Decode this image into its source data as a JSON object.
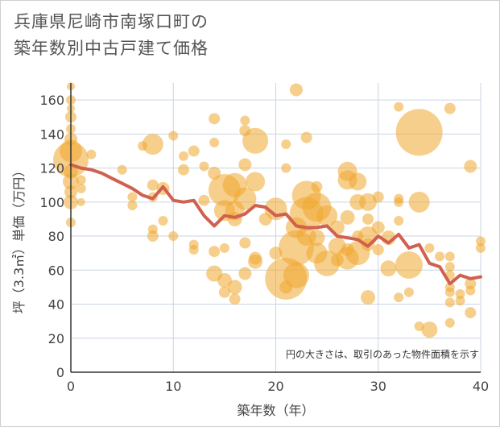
{
  "title_line1": "兵庫県尼崎市南塚口町の",
  "title_line2": "築年数別中古戸建て価格",
  "colors": {
    "bubble": "#f0a830",
    "line": "#d06050",
    "grid": "#c9d6e2",
    "axis": "#333333"
  },
  "chart_data": {
    "type": "scatter",
    "xlabel": "築年数（年）",
    "ylabel": "坪（3.3㎡）単価（万円）",
    "xlim": [
      0,
      40
    ],
    "ylim": [
      0,
      170
    ],
    "xticks": [
      0,
      10,
      20,
      30,
      40
    ],
    "yticks": [
      0,
      20,
      40,
      60,
      80,
      100,
      120,
      140,
      160
    ],
    "grid": true,
    "note": "円の大きさは、取引のあった物件面積を示す",
    "trend": {
      "x": [
        0,
        1,
        2,
        3,
        4,
        5,
        6,
        7,
        8,
        9,
        10,
        11,
        12,
        13,
        14,
        15,
        16,
        17,
        18,
        19,
        20,
        21,
        22,
        23,
        24,
        25,
        26,
        27,
        28,
        29,
        30,
        31,
        32,
        33,
        34,
        35,
        36,
        37,
        38,
        39,
        40
      ],
      "y": [
        122,
        120,
        119,
        117,
        114,
        111,
        108,
        104,
        102,
        109,
        101,
        100,
        101,
        92,
        86,
        92,
        91,
        93,
        98,
        97,
        92,
        93,
        86,
        85,
        85,
        86,
        80,
        79,
        78,
        74,
        80,
        76,
        81,
        73,
        75,
        64,
        62,
        52,
        57,
        55,
        56
      ]
    },
    "bubbles": [
      {
        "x": 0,
        "y": 168,
        "s": 5
      },
      {
        "x": 0,
        "y": 160,
        "s": 6
      },
      {
        "x": 0,
        "y": 155,
        "s": 5
      },
      {
        "x": 0,
        "y": 150,
        "s": 7
      },
      {
        "x": 0,
        "y": 143,
        "s": 6
      },
      {
        "x": 0,
        "y": 137,
        "s": 8
      },
      {
        "x": 0,
        "y": 130,
        "s": 14
      },
      {
        "x": 0,
        "y": 125,
        "s": 22
      },
      {
        "x": 0,
        "y": 118,
        "s": 9
      },
      {
        "x": 0,
        "y": 112,
        "s": 10
      },
      {
        "x": 0,
        "y": 106,
        "s": 8
      },
      {
        "x": 0,
        "y": 100,
        "s": 9
      },
      {
        "x": 0,
        "y": 88,
        "s": 6
      },
      {
        "x": 1,
        "y": 113,
        "s": 6
      },
      {
        "x": 1,
        "y": 108,
        "s": 6
      },
      {
        "x": 1,
        "y": 100,
        "s": 5
      },
      {
        "x": 2,
        "y": 128,
        "s": 6
      },
      {
        "x": 5,
        "y": 119,
        "s": 6
      },
      {
        "x": 6,
        "y": 103,
        "s": 6
      },
      {
        "x": 6,
        "y": 98,
        "s": 6
      },
      {
        "x": 7,
        "y": 133,
        "s": 6
      },
      {
        "x": 8,
        "y": 134,
        "s": 13
      },
      {
        "x": 8,
        "y": 110,
        "s": 7
      },
      {
        "x": 8,
        "y": 103,
        "s": 6
      },
      {
        "x": 8,
        "y": 84,
        "s": 6
      },
      {
        "x": 8,
        "y": 80,
        "s": 7
      },
      {
        "x": 9,
        "y": 89,
        "s": 6
      },
      {
        "x": 9,
        "y": 108,
        "s": 8
      },
      {
        "x": 10,
        "y": 139,
        "s": 6
      },
      {
        "x": 10,
        "y": 80,
        "s": 6
      },
      {
        "x": 11,
        "y": 127,
        "s": 6
      },
      {
        "x": 11,
        "y": 119,
        "s": 7
      },
      {
        "x": 12,
        "y": 130,
        "s": 7
      },
      {
        "x": 12,
        "y": 75,
        "s": 6
      },
      {
        "x": 12,
        "y": 72,
        "s": 6
      },
      {
        "x": 13,
        "y": 101,
        "s": 7
      },
      {
        "x": 13,
        "y": 121,
        "s": 6
      },
      {
        "x": 14,
        "y": 149,
        "s": 7
      },
      {
        "x": 14,
        "y": 135,
        "s": 6
      },
      {
        "x": 14,
        "y": 117,
        "s": 8
      },
      {
        "x": 14,
        "y": 71,
        "s": 7
      },
      {
        "x": 14,
        "y": 58,
        "s": 10
      },
      {
        "x": 15,
        "y": 107,
        "s": 20
      },
      {
        "x": 15,
        "y": 95,
        "s": 13
      },
      {
        "x": 15,
        "y": 73,
        "s": 6
      },
      {
        "x": 15,
        "y": 54,
        "s": 9
      },
      {
        "x": 15,
        "y": 47,
        "s": 7
      },
      {
        "x": 16,
        "y": 110,
        "s": 15
      },
      {
        "x": 16,
        "y": 95,
        "s": 12
      },
      {
        "x": 16,
        "y": 90,
        "s": 9
      },
      {
        "x": 16,
        "y": 50,
        "s": 9
      },
      {
        "x": 16,
        "y": 43,
        "s": 7
      },
      {
        "x": 17,
        "y": 148,
        "s": 6
      },
      {
        "x": 17,
        "y": 142,
        "s": 7
      },
      {
        "x": 17,
        "y": 122,
        "s": 8
      },
      {
        "x": 17,
        "y": 102,
        "s": 14
      },
      {
        "x": 17,
        "y": 76,
        "s": 7
      },
      {
        "x": 17,
        "y": 58,
        "s": 8
      },
      {
        "x": 18,
        "y": 136,
        "s": 16
      },
      {
        "x": 18,
        "y": 112,
        "s": 12
      },
      {
        "x": 18,
        "y": 67,
        "s": 8
      },
      {
        "x": 18,
        "y": 65,
        "s": 9
      },
      {
        "x": 19,
        "y": 90,
        "s": 8
      },
      {
        "x": 20,
        "y": 96,
        "s": 14
      },
      {
        "x": 20,
        "y": 70,
        "s": 8
      },
      {
        "x": 21,
        "y": 134,
        "s": 6
      },
      {
        "x": 21,
        "y": 120,
        "s": 6
      },
      {
        "x": 21,
        "y": 55,
        "s": 26
      },
      {
        "x": 21,
        "y": 50,
        "s": 8
      },
      {
        "x": 22,
        "y": 166,
        "s": 8
      },
      {
        "x": 22,
        "y": 85,
        "s": 13
      },
      {
        "x": 22,
        "y": 73,
        "s": 22
      },
      {
        "x": 22,
        "y": 57,
        "s": 16
      },
      {
        "x": 23,
        "y": 138,
        "s": 7
      },
      {
        "x": 23,
        "y": 104,
        "s": 18
      },
      {
        "x": 23,
        "y": 93,
        "s": 21
      },
      {
        "x": 23,
        "y": 80,
        "s": 12
      },
      {
        "x": 24,
        "y": 109,
        "s": 7
      },
      {
        "x": 24,
        "y": 97,
        "s": 18
      },
      {
        "x": 24,
        "y": 79,
        "s": 10
      },
      {
        "x": 24,
        "y": 70,
        "s": 13
      },
      {
        "x": 25,
        "y": 92,
        "s": 13
      },
      {
        "x": 25,
        "y": 64,
        "s": 16
      },
      {
        "x": 26,
        "y": 85,
        "s": 9
      },
      {
        "x": 26,
        "y": 74,
        "s": 11
      },
      {
        "x": 26,
        "y": 66,
        "s": 8
      },
      {
        "x": 27,
        "y": 118,
        "s": 12
      },
      {
        "x": 27,
        "y": 113,
        "s": 12
      },
      {
        "x": 27,
        "y": 91,
        "s": 9
      },
      {
        "x": 27,
        "y": 72,
        "s": 8
      },
      {
        "x": 27,
        "y": 67,
        "s": 14
      },
      {
        "x": 28,
        "y": 112,
        "s": 11
      },
      {
        "x": 28,
        "y": 100,
        "s": 10
      },
      {
        "x": 28,
        "y": 80,
        "s": 7
      },
      {
        "x": 28,
        "y": 70,
        "s": 15
      },
      {
        "x": 29,
        "y": 100,
        "s": 11
      },
      {
        "x": 29,
        "y": 90,
        "s": 7
      },
      {
        "x": 29,
        "y": 80,
        "s": 12
      },
      {
        "x": 29,
        "y": 75,
        "s": 8
      },
      {
        "x": 29,
        "y": 44,
        "s": 9
      },
      {
        "x": 30,
        "y": 103,
        "s": 7
      },
      {
        "x": 30,
        "y": 85,
        "s": 8
      },
      {
        "x": 30,
        "y": 72,
        "s": 7
      },
      {
        "x": 31,
        "y": 79,
        "s": 9
      },
      {
        "x": 31,
        "y": 61,
        "s": 10
      },
      {
        "x": 32,
        "y": 156,
        "s": 6
      },
      {
        "x": 32,
        "y": 102,
        "s": 6
      },
      {
        "x": 32,
        "y": 100,
        "s": 6
      },
      {
        "x": 32,
        "y": 89,
        "s": 6
      },
      {
        "x": 32,
        "y": 44,
        "s": 6
      },
      {
        "x": 33,
        "y": 63,
        "s": 17
      },
      {
        "x": 33,
        "y": 47,
        "s": 6
      },
      {
        "x": 34,
        "y": 141,
        "s": 29
      },
      {
        "x": 34,
        "y": 100,
        "s": 13
      },
      {
        "x": 34,
        "y": 27,
        "s": 6
      },
      {
        "x": 35,
        "y": 25,
        "s": 10
      },
      {
        "x": 35,
        "y": 73,
        "s": 6
      },
      {
        "x": 36,
        "y": 68,
        "s": 6
      },
      {
        "x": 37,
        "y": 155,
        "s": 7
      },
      {
        "x": 37,
        "y": 68,
        "s": 6
      },
      {
        "x": 37,
        "y": 62,
        "s": 6
      },
      {
        "x": 37,
        "y": 57,
        "s": 6
      },
      {
        "x": 37,
        "y": 50,
        "s": 6
      },
      {
        "x": 37,
        "y": 47,
        "s": 6
      },
      {
        "x": 37,
        "y": 41,
        "s": 6
      },
      {
        "x": 37,
        "y": 29,
        "s": 6
      },
      {
        "x": 38,
        "y": 46,
        "s": 6
      },
      {
        "x": 38,
        "y": 42,
        "s": 6
      },
      {
        "x": 39,
        "y": 121,
        "s": 8
      },
      {
        "x": 39,
        "y": 52,
        "s": 7
      },
      {
        "x": 39,
        "y": 48,
        "s": 6
      },
      {
        "x": 39,
        "y": 35,
        "s": 7
      },
      {
        "x": 40,
        "y": 77,
        "s": 6
      },
      {
        "x": 40,
        "y": 73,
        "s": 6
      }
    ]
  }
}
